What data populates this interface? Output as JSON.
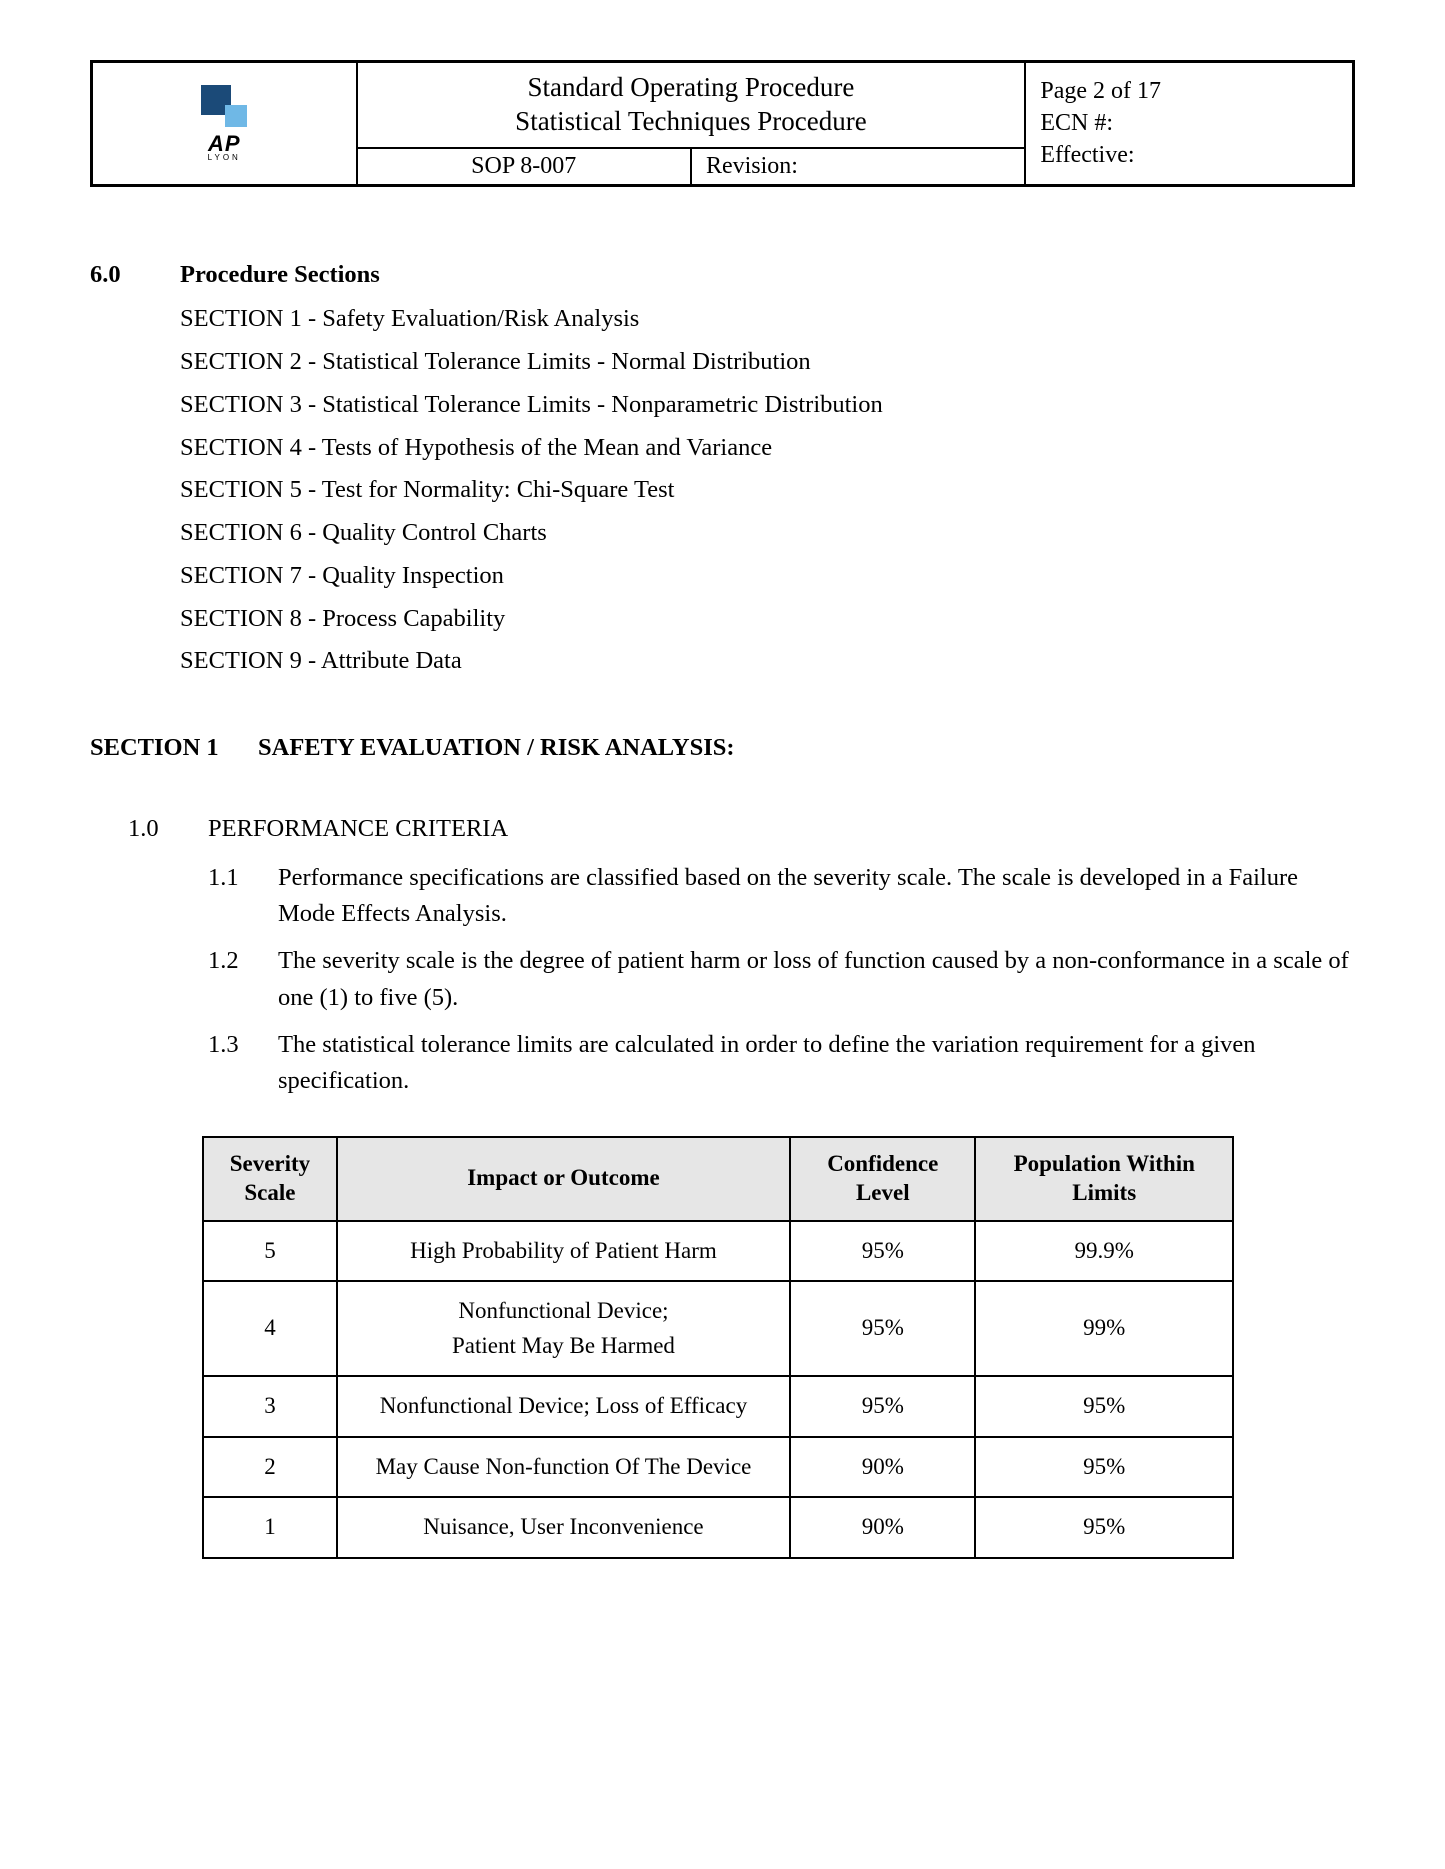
{
  "header": {
    "logo": {
      "text": "AP",
      "sub": "LYON",
      "dark_color": "#1b4a78",
      "light_color": "#6fb8e6"
    },
    "title_line1": "Standard Operating Procedure",
    "title_line2": "Statistical Techniques Procedure",
    "sop_number": "SOP 8-007",
    "revision_label": "Revision:",
    "page_label": "Page  2 of 17",
    "ecn_label": "ECN #:",
    "effective_label": "Effective:"
  },
  "procedure_sections": {
    "number": "6.0",
    "title": "Procedure Sections",
    "items": [
      "SECTION 1 - Safety Evaluation/Risk Analysis",
      "SECTION 2 - Statistical Tolerance Limits - Normal Distribution",
      "SECTION 3 - Statistical Tolerance Limits - Nonparametric Distribution",
      "SECTION 4 - Tests of Hypothesis of the Mean and Variance",
      "SECTION 5 - Test for Normality:  Chi-Square Test",
      "SECTION 6 - Quality Control Charts",
      "SECTION 7 - Quality Inspection",
      "SECTION 8 - Process Capability",
      "SECTION 9 - Attribute Data"
    ]
  },
  "section1": {
    "label": "SECTION 1",
    "title": "SAFETY EVALUATION / RISK ANALYSIS:"
  },
  "performance": {
    "number": "1.0",
    "title": "PERFORMANCE CRITERIA",
    "items": [
      {
        "n": "1.1",
        "t": "Performance specifications are classified based on the severity scale.  The scale is developed in a Failure Mode Effects Analysis."
      },
      {
        "n": "1.2",
        "t": "The severity scale is the degree of patient harm or loss of function caused by a non-conformance in a scale of one (1) to five (5)."
      },
      {
        "n": "1.3",
        "t": "The statistical tolerance limits are calculated in order to define the variation requirement for a given specification."
      }
    ]
  },
  "severity_table": {
    "header_bg": "#e6e6e6",
    "border_color": "#000000",
    "columns": [
      "Severity Scale",
      "Impact or Outcome",
      "Confidence Level",
      "Population Within Limits"
    ],
    "rows": [
      {
        "scale": "5",
        "impact": "High Probability of Patient Harm",
        "conf": "95%",
        "pop": "99.9%"
      },
      {
        "scale": "4",
        "impact": "Nonfunctional Device;\nPatient May Be Harmed",
        "conf": "95%",
        "pop": "99%"
      },
      {
        "scale": "3",
        "impact": "Nonfunctional Device; Loss of Efficacy",
        "conf": "95%",
        "pop": "95%"
      },
      {
        "scale": "2",
        "impact": "May Cause Non-function Of The Device",
        "conf": "90%",
        "pop": "95%"
      },
      {
        "scale": "1",
        "impact": "Nuisance, User Inconvenience",
        "conf": "90%",
        "pop": "95%"
      }
    ]
  }
}
